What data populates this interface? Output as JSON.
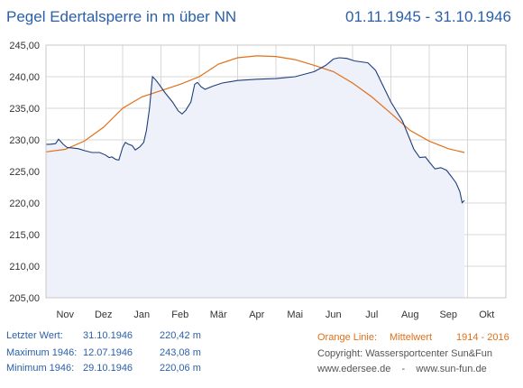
{
  "header": {
    "title": "Pegel Edertalsperre in m über NN",
    "date_range": "01.11.1945 - 31.10.1946"
  },
  "stats": {
    "last_label": "Letzter Wert:",
    "last_date": "31.10.1946",
    "last_value": "220,42 m",
    "max_label": "Maximum 1946:",
    "max_date": "12.07.1946",
    "max_value": "243,08 m",
    "min_label": "Minimum  1946:",
    "min_date": "29.10.1946",
    "min_value": "220,06 m"
  },
  "legend": {
    "prefix": "Orange Linie:",
    "name": "Mittelwert",
    "years": "1914 - 2016"
  },
  "footer": {
    "copyright": "Copyright: Wassersportcenter Sun&Fun",
    "links": "www.edersee.de    -    www.sun-fun.de"
  },
  "colors": {
    "level_line": "#1f3f7a",
    "level_fill": "#eef0fa",
    "mean_line": "#e0701a",
    "grid": "#d7d7d7",
    "text_blue": "#2a5fa8"
  },
  "chart_data": {
    "type": "line",
    "title": "Pegel Edertalsperre in m über NN",
    "x_axis": "month",
    "categories": [
      "Nov",
      "Dez",
      "Jan",
      "Feb",
      "Mär",
      "Apr",
      "Mai",
      "Jun",
      "Jul",
      "Aug",
      "Sep",
      "Okt"
    ],
    "ylim": [
      205,
      245
    ],
    "yticks": [
      "205,00",
      "210,00",
      "215,00",
      "220,00",
      "225,00",
      "230,00",
      "235,00",
      "240,00",
      "245,00"
    ],
    "grid": true,
    "series": [
      {
        "name": "Pegel",
        "points": [
          [
            0,
            229.3
          ],
          [
            0.1,
            229.3
          ],
          [
            0.25,
            229.4
          ],
          [
            0.33,
            230.1
          ],
          [
            0.45,
            229.3
          ],
          [
            0.55,
            228.8
          ],
          [
            0.7,
            228.7
          ],
          [
            0.85,
            228.6
          ],
          [
            1.0,
            228.3
          ],
          [
            1.2,
            228.0
          ],
          [
            1.4,
            228.0
          ],
          [
            1.55,
            227.6
          ],
          [
            1.65,
            227.2
          ],
          [
            1.72,
            227.3
          ],
          [
            1.82,
            226.9
          ],
          [
            1.9,
            226.8
          ],
          [
            2.0,
            228.8
          ],
          [
            2.07,
            229.6
          ],
          [
            2.15,
            229.3
          ],
          [
            2.25,
            229.1
          ],
          [
            2.33,
            228.4
          ],
          [
            2.45,
            228.9
          ],
          [
            2.55,
            229.6
          ],
          [
            2.62,
            231.5
          ],
          [
            2.7,
            235.0
          ],
          [
            2.78,
            240.0
          ],
          [
            2.86,
            239.5
          ],
          [
            2.95,
            238.8
          ],
          [
            3.1,
            237.5
          ],
          [
            3.3,
            236.0
          ],
          [
            3.45,
            234.6
          ],
          [
            3.55,
            234.1
          ],
          [
            3.65,
            234.7
          ],
          [
            3.78,
            236.0
          ],
          [
            3.88,
            238.8
          ],
          [
            3.95,
            239.1
          ],
          [
            4.05,
            238.4
          ],
          [
            4.15,
            238.0
          ],
          [
            4.35,
            238.5
          ],
          [
            4.6,
            239.0
          ],
          [
            5.0,
            239.4
          ],
          [
            5.5,
            239.6
          ],
          [
            6.0,
            239.7
          ],
          [
            6.5,
            240.0
          ],
          [
            7.0,
            240.8
          ],
          [
            7.3,
            241.8
          ],
          [
            7.5,
            242.8
          ],
          [
            7.65,
            243.0
          ],
          [
            7.85,
            242.9
          ],
          [
            8.05,
            242.5
          ],
          [
            8.4,
            242.2
          ],
          [
            8.6,
            241.0
          ],
          [
            8.8,
            238.5
          ],
          [
            9.0,
            236.0
          ],
          [
            9.3,
            233.0
          ],
          [
            9.5,
            230.0
          ],
          [
            9.6,
            228.5
          ],
          [
            9.75,
            227.2
          ],
          [
            9.9,
            227.3
          ],
          [
            10.0,
            226.5
          ],
          [
            10.15,
            225.4
          ],
          [
            10.3,
            225.6
          ],
          [
            10.45,
            225.2
          ],
          [
            10.58,
            224.2
          ],
          [
            10.7,
            223.2
          ],
          [
            10.8,
            221.8
          ],
          [
            10.86,
            220.06
          ],
          [
            10.92,
            220.42
          ]
        ]
      },
      {
        "name": "Mittelwert",
        "points": [
          [
            0,
            228.1
          ],
          [
            0.5,
            228.5
          ],
          [
            1.0,
            229.8
          ],
          [
            1.5,
            232.0
          ],
          [
            2.0,
            235.0
          ],
          [
            2.5,
            236.8
          ],
          [
            3.0,
            237.8
          ],
          [
            3.5,
            238.8
          ],
          [
            4.0,
            240.0
          ],
          [
            4.5,
            242.0
          ],
          [
            5.0,
            243.0
          ],
          [
            5.5,
            243.3
          ],
          [
            6.0,
            243.2
          ],
          [
            6.5,
            242.7
          ],
          [
            7.0,
            241.8
          ],
          [
            7.5,
            240.8
          ],
          [
            8.0,
            239.0
          ],
          [
            8.5,
            236.8
          ],
          [
            9.0,
            234.2
          ],
          [
            9.5,
            231.5
          ],
          [
            10.0,
            229.8
          ],
          [
            10.5,
            228.6
          ],
          [
            10.92,
            228.0
          ]
        ]
      }
    ]
  }
}
